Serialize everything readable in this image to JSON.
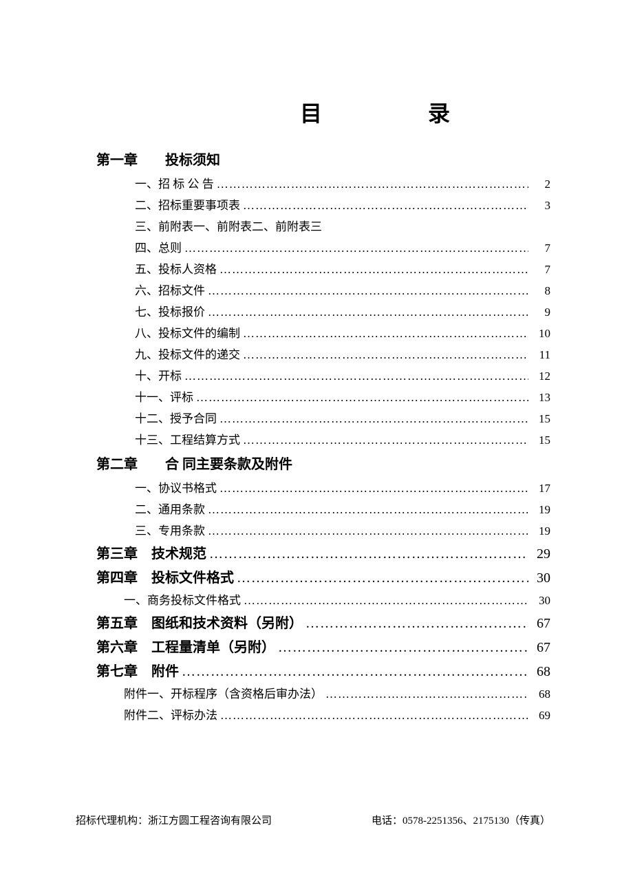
{
  "title": "目　　录",
  "chapters": [
    {
      "num": "第一章",
      "title": "投标须知",
      "page": null,
      "items": [
        {
          "text": "一、招 标 公 告",
          "page": "2"
        },
        {
          "text": "二、招标重要事项表",
          "page": "3"
        },
        {
          "text": "三、前附表一、前附表二、前附表三",
          "page": null
        },
        {
          "text": "四、总则",
          "page": "7"
        },
        {
          "text": "五、投标人资格",
          "page": "7"
        },
        {
          "text": "六、招标文件",
          "page": "8"
        },
        {
          "text": "七、投标报价",
          "page": "9"
        },
        {
          "text": "八、投标文件的编制",
          "page": "10"
        },
        {
          "text": "九、投标文件的递交",
          "page": "11"
        },
        {
          "text": "十、开标",
          "page": "12"
        },
        {
          "text": "十一、评标",
          "page": "13"
        },
        {
          "text": "十二、授予合同",
          "page": "15"
        },
        {
          "text": "十三、工程结算方式",
          "page": "15"
        }
      ]
    },
    {
      "num": "第二章",
      "title": "合 同主要条款及附件",
      "page": null,
      "items": [
        {
          "text": "一、协议书格式",
          "page": "17"
        },
        {
          "text": "二、通用条款",
          "page": "19"
        },
        {
          "text": "三、专用条款",
          "page": "19"
        }
      ]
    },
    {
      "num": "第三章",
      "title": "技术规范",
      "page": "29",
      "items": []
    },
    {
      "num": "第四章",
      "title": "投标文件格式",
      "page": "30",
      "items": [
        {
          "text": "一、商务投标文件格式",
          "page": "30",
          "sub": true
        }
      ]
    },
    {
      "num": "第五章",
      "title": "图纸和技术资料（另附）",
      "page": "67",
      "items": []
    },
    {
      "num": "第六章",
      "title": "工程量清单（另附）",
      "page": "67",
      "items": []
    },
    {
      "num": "第七章",
      "title": "附件",
      "page": "68",
      "items": [
        {
          "text": "附件一、开标程序（含资格后审办法）",
          "page": "68",
          "sub": true
        },
        {
          "text": "附件二、评标办法 ",
          "page": "69",
          "sub": true
        }
      ]
    }
  ],
  "footer": {
    "left": "招标代理机构：浙江方圆工程咨询有限公司",
    "right": "电话：0578-2251356、2175130（传真）"
  },
  "dots_string": "…………………………………………………………………………………………"
}
